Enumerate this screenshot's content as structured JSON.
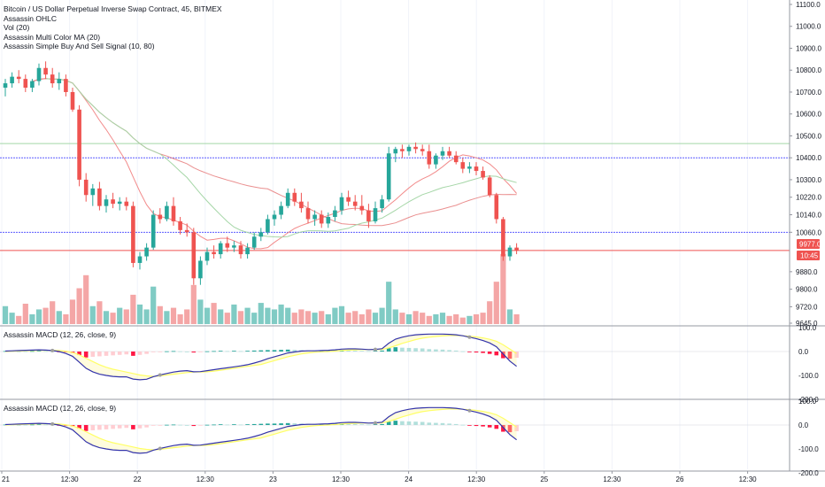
{
  "header": {
    "title": "Bitcoin / US Dollar Perpetual Inverse Swap Contract, 45, BITMEX",
    "indicators": [
      "Assassin OHLC",
      "Vol (20)",
      "Assassin Multi Color MA (20)",
      "Assassin Simple Buy And Sell Signal (10, 80)"
    ]
  },
  "panes": {
    "macd1_label": "Assassin MACD (12, 26, close, 9)",
    "macd2_label": "Assassin MACD (12, 26, close, 9)"
  },
  "price_axis": {
    "ticks": [
      "11100.0",
      "11000.0",
      "10900.0",
      "10800.0",
      "10700.0",
      "10600.0",
      "10500.0",
      "10400.0",
      "10300.0",
      "10220.0",
      "10140.0",
      "10060.0",
      "9880.0",
      "9800.0",
      "9720.0",
      "9645.0"
    ],
    "current_price": "9977.0",
    "countdown": "10:45"
  },
  "macd_axis": {
    "ticks": [
      "100.0",
      "0.0",
      "-100.0",
      "-200.0"
    ]
  },
  "time_axis": {
    "ticks": [
      "21",
      "12:30",
      "22",
      "12:30",
      "23",
      "12:30",
      "24",
      "12:30",
      "25",
      "12:30",
      "26",
      "12:30"
    ]
  },
  "colors": {
    "up": "#26a69a",
    "down": "#ef5350",
    "vol_up": "#80cbc4",
    "vol_down": "#f4a6a6",
    "green_line": "#a5d6a7",
    "blue_line": "#5c5cff",
    "red_line": "#ef5350",
    "macd_line": "#3333aa",
    "signal_line": "#ffff66"
  },
  "chart_data": {
    "type": "candlestick",
    "price_range": [
      9645,
      11100
    ],
    "candles": [
      {
        "o": 10720,
        "h": 10760,
        "l": 10680,
        "c": 10740
      },
      {
        "o": 10740,
        "h": 10790,
        "l": 10720,
        "c": 10770
      },
      {
        "o": 10770,
        "h": 10800,
        "l": 10740,
        "c": 10760
      },
      {
        "o": 10760,
        "h": 10780,
        "l": 10700,
        "c": 10720
      },
      {
        "o": 10720,
        "h": 10760,
        "l": 10700,
        "c": 10750
      },
      {
        "o": 10750,
        "h": 10830,
        "l": 10730,
        "c": 10810
      },
      {
        "o": 10810,
        "h": 10840,
        "l": 10760,
        "c": 10780
      },
      {
        "o": 10780,
        "h": 10810,
        "l": 10720,
        "c": 10740
      },
      {
        "o": 10740,
        "h": 10790,
        "l": 10710,
        "c": 10760
      },
      {
        "o": 10760,
        "h": 10780,
        "l": 10680,
        "c": 10700
      },
      {
        "o": 10700,
        "h": 10720,
        "l": 10610,
        "c": 10620
      },
      {
        "o": 10620,
        "h": 10640,
        "l": 10270,
        "c": 10300
      },
      {
        "o": 10300,
        "h": 10330,
        "l": 10200,
        "c": 10230
      },
      {
        "o": 10230,
        "h": 10280,
        "l": 10180,
        "c": 10260
      },
      {
        "o": 10260,
        "h": 10290,
        "l": 10160,
        "c": 10180
      },
      {
        "o": 10180,
        "h": 10230,
        "l": 10150,
        "c": 10210
      },
      {
        "o": 10210,
        "h": 10240,
        "l": 10170,
        "c": 10190
      },
      {
        "o": 10190,
        "h": 10220,
        "l": 10160,
        "c": 10200
      },
      {
        "o": 10200,
        "h": 10220,
        "l": 10160,
        "c": 10180
      },
      {
        "o": 10180,
        "h": 10200,
        "l": 9900,
        "c": 9920
      },
      {
        "o": 9920,
        "h": 9970,
        "l": 9890,
        "c": 9950
      },
      {
        "o": 9950,
        "h": 10010,
        "l": 9930,
        "c": 9990
      },
      {
        "o": 9990,
        "h": 10160,
        "l": 9980,
        "c": 10140
      },
      {
        "o": 10140,
        "h": 10170,
        "l": 10100,
        "c": 10120
      },
      {
        "o": 10120,
        "h": 10200,
        "l": 10110,
        "c": 10180
      },
      {
        "o": 10180,
        "h": 10220,
        "l": 10090,
        "c": 10110
      },
      {
        "o": 10110,
        "h": 10130,
        "l": 10050,
        "c": 10070
      },
      {
        "o": 10070,
        "h": 10100,
        "l": 10040,
        "c": 10060
      },
      {
        "o": 10060,
        "h": 10080,
        "l": 9820,
        "c": 9850
      },
      {
        "o": 9850,
        "h": 9950,
        "l": 9820,
        "c": 9930
      },
      {
        "o": 9930,
        "h": 9990,
        "l": 9910,
        "c": 9970
      },
      {
        "o": 9970,
        "h": 10000,
        "l": 9940,
        "c": 9960
      },
      {
        "o": 9960,
        "h": 10020,
        "l": 9940,
        "c": 10010
      },
      {
        "o": 10010,
        "h": 10040,
        "l": 9970,
        "c": 9990
      },
      {
        "o": 9990,
        "h": 10020,
        "l": 9970,
        "c": 10000
      },
      {
        "o": 10000,
        "h": 10020,
        "l": 9940,
        "c": 9960
      },
      {
        "o": 9960,
        "h": 10010,
        "l": 9940,
        "c": 9990
      },
      {
        "o": 9990,
        "h": 10060,
        "l": 9980,
        "c": 10040
      },
      {
        "o": 10040,
        "h": 10080,
        "l": 10020,
        "c": 10060
      },
      {
        "o": 10060,
        "h": 10140,
        "l": 10050,
        "c": 10120
      },
      {
        "o": 10120,
        "h": 10160,
        "l": 10090,
        "c": 10140
      },
      {
        "o": 10140,
        "h": 10200,
        "l": 10120,
        "c": 10180
      },
      {
        "o": 10180,
        "h": 10260,
        "l": 10170,
        "c": 10240
      },
      {
        "o": 10240,
        "h": 10260,
        "l": 10180,
        "c": 10200
      },
      {
        "o": 10200,
        "h": 10240,
        "l": 10150,
        "c": 10170
      },
      {
        "o": 10170,
        "h": 10200,
        "l": 10100,
        "c": 10120
      },
      {
        "o": 10120,
        "h": 10160,
        "l": 10090,
        "c": 10140
      },
      {
        "o": 10140,
        "h": 10160,
        "l": 10080,
        "c": 10100
      },
      {
        "o": 10100,
        "h": 10150,
        "l": 10080,
        "c": 10130
      },
      {
        "o": 10130,
        "h": 10180,
        "l": 10110,
        "c": 10160
      },
      {
        "o": 10160,
        "h": 10240,
        "l": 10140,
        "c": 10220
      },
      {
        "o": 10220,
        "h": 10250,
        "l": 10180,
        "c": 10200
      },
      {
        "o": 10200,
        "h": 10230,
        "l": 10160,
        "c": 10180
      },
      {
        "o": 10180,
        "h": 10230,
        "l": 10140,
        "c": 10160
      },
      {
        "o": 10160,
        "h": 10190,
        "l": 10080,
        "c": 10110
      },
      {
        "o": 10110,
        "h": 10200,
        "l": 10100,
        "c": 10170
      },
      {
        "o": 10170,
        "h": 10230,
        "l": 10150,
        "c": 10210
      },
      {
        "o": 10210,
        "h": 10450,
        "l": 10200,
        "c": 10420
      },
      {
        "o": 10420,
        "h": 10450,
        "l": 10380,
        "c": 10440
      },
      {
        "o": 10440,
        "h": 10460,
        "l": 10400,
        "c": 10430
      },
      {
        "o": 10430,
        "h": 10460,
        "l": 10410,
        "c": 10450
      },
      {
        "o": 10450,
        "h": 10470,
        "l": 10420,
        "c": 10440
      },
      {
        "o": 10440,
        "h": 10460,
        "l": 10410,
        "c": 10430
      },
      {
        "o": 10430,
        "h": 10460,
        "l": 10350,
        "c": 10370
      },
      {
        "o": 10370,
        "h": 10420,
        "l": 10350,
        "c": 10410
      },
      {
        "o": 10410,
        "h": 10450,
        "l": 10390,
        "c": 10430
      },
      {
        "o": 10430,
        "h": 10450,
        "l": 10400,
        "c": 10410
      },
      {
        "o": 10410,
        "h": 10430,
        "l": 10370,
        "c": 10380
      },
      {
        "o": 10380,
        "h": 10400,
        "l": 10330,
        "c": 10350
      },
      {
        "o": 10350,
        "h": 10380,
        "l": 10330,
        "c": 10360
      },
      {
        "o": 10360,
        "h": 10380,
        "l": 10320,
        "c": 10340
      },
      {
        "o": 10340,
        "h": 10360,
        "l": 10300,
        "c": 10310
      },
      {
        "o": 10310,
        "h": 10320,
        "l": 10220,
        "c": 10230
      },
      {
        "o": 10230,
        "h": 10240,
        "l": 10100,
        "c": 10120
      },
      {
        "o": 10120,
        "h": 10130,
        "l": 9930,
        "c": 9950
      },
      {
        "o": 9950,
        "h": 10000,
        "l": 9930,
        "c": 9990
      },
      {
        "o": 9990,
        "h": 10010,
        "l": 9960,
        "c": 9977
      }
    ],
    "volumes": [
      22,
      14,
      10,
      25,
      12,
      18,
      20,
      28,
      16,
      12,
      30,
      44,
      60,
      22,
      28,
      16,
      14,
      20,
      18,
      36,
      24,
      18,
      46,
      22,
      16,
      20,
      12,
      18,
      48,
      30,
      20,
      26,
      18,
      14,
      24,
      16,
      20,
      14,
      26,
      20,
      18,
      24,
      20,
      14,
      18,
      16,
      14,
      16,
      12,
      20,
      22,
      14,
      16,
      12,
      18,
      14,
      20,
      52,
      18,
      14,
      12,
      16,
      14,
      10,
      12,
      14,
      10,
      12,
      8,
      10,
      12,
      14,
      28,
      52,
      86,
      18,
      12
    ],
    "macd_hist": [
      2,
      1,
      2,
      1,
      2,
      3,
      2,
      1,
      -1,
      -3,
      -6,
      -15,
      -25,
      -22,
      -20,
      -18,
      -16,
      -14,
      -12,
      -18,
      -14,
      -10,
      -2,
      -1,
      1,
      2,
      1,
      0,
      -4,
      -2,
      1,
      2,
      3,
      2,
      3,
      2,
      3,
      4,
      5,
      6,
      6,
      7,
      8,
      7,
      6,
      5,
      4,
      4,
      5,
      5,
      6,
      5,
      4,
      3,
      2,
      3,
      4,
      14,
      18,
      16,
      15,
      14,
      13,
      10,
      9,
      8,
      6,
      4,
      1,
      -2,
      -4,
      -6,
      -10,
      -16,
      -28,
      -30,
      -26
    ],
    "macd_line": [
      2,
      3,
      4,
      5,
      6,
      7,
      6,
      4,
      0,
      -8,
      -20,
      -45,
      -70,
      -85,
      -95,
      -100,
      -104,
      -106,
      -106,
      -115,
      -118,
      -116,
      -105,
      -98,
      -92,
      -86,
      -82,
      -80,
      -85,
      -84,
      -80,
      -76,
      -72,
      -68,
      -64,
      -60,
      -55,
      -48,
      -40,
      -30,
      -22,
      -14,
      -6,
      -2,
      2,
      3,
      3,
      4,
      5,
      7,
      10,
      11,
      11,
      10,
      8,
      9,
      12,
      35,
      52,
      60,
      66,
      70,
      72,
      73,
      73,
      73,
      72,
      70,
      66,
      60,
      54,
      46,
      36,
      20,
      -10,
      -40,
      -62
    ],
    "signal_line": [
      0,
      1,
      2,
      3,
      4,
      5,
      5,
      5,
      4,
      1,
      -4,
      -14,
      -28,
      -42,
      -55,
      -66,
      -74,
      -80,
      -86,
      -92,
      -98,
      -102,
      -104,
      -102,
      -98,
      -95,
      -92,
      -88,
      -86,
      -86,
      -85,
      -82,
      -78,
      -74,
      -70,
      -66,
      -62,
      -58,
      -54,
      -46,
      -38,
      -30,
      -22,
      -16,
      -10,
      -6,
      -3,
      -1,
      0,
      2,
      4,
      6,
      7,
      8,
      8,
      8,
      9,
      15,
      24,
      34,
      42,
      50,
      56,
      60,
      63,
      65,
      67,
      67,
      66,
      64,
      61,
      57,
      51,
      43,
      28,
      10,
      -8
    ]
  }
}
